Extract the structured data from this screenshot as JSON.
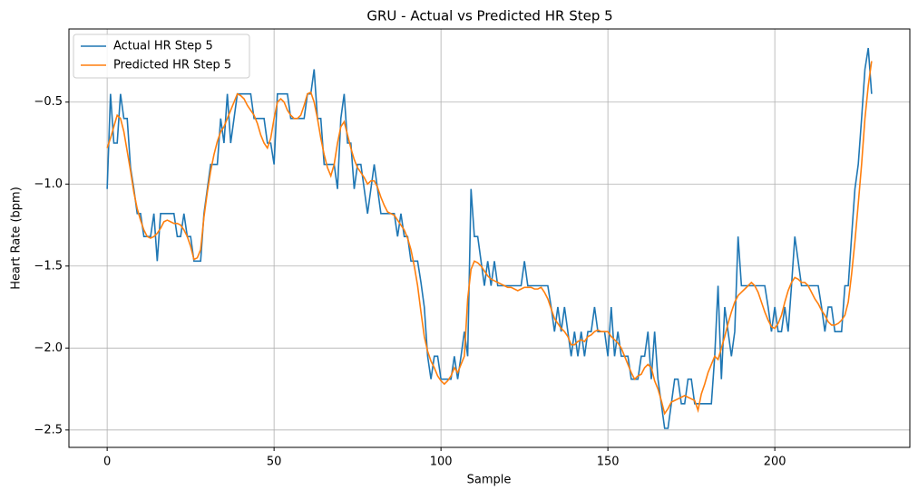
{
  "chart_data": {
    "type": "line",
    "title": "GRU - Actual vs Predicted HR Step 5",
    "x_label": "Sample",
    "y_label": "Heart Rate (bpm)",
    "xlim": [
      -11.45,
      240.45
    ],
    "xticks": [
      0,
      50,
      100,
      150,
      200
    ],
    "ylim": [
      -2.606,
      -0.054
    ],
    "yticks": [
      {
        "value": -2.5,
        "label": "−2.5"
      },
      {
        "value": -2,
        "label": "−2.0"
      },
      {
        "value": -1.5,
        "label": "−1.5"
      },
      {
        "value": -1,
        "label": "−1.0"
      },
      {
        "value": -0.5,
        "label": "−0.5"
      }
    ],
    "grid": true,
    "legend": "upper left",
    "series": [
      {
        "name": "Actual HR Step 5",
        "color": "#1f77b4",
        "values": [
          -1.03,
          -0.45,
          -0.75,
          -0.75,
          -0.45,
          -0.6,
          -0.6,
          -0.9,
          -1.03,
          -1.18,
          -1.18,
          -1.32,
          -1.32,
          -1.32,
          -1.18,
          -1.47,
          -1.18,
          -1.18,
          -1.18,
          -1.18,
          -1.18,
          -1.32,
          -1.32,
          -1.18,
          -1.32,
          -1.32,
          -1.47,
          -1.47,
          -1.47,
          -1.18,
          -1.03,
          -0.88,
          -0.88,
          -0.88,
          -0.6,
          -0.75,
          -0.45,
          -0.75,
          -0.6,
          -0.45,
          -0.45,
          -0.45,
          -0.45,
          -0.45,
          -0.6,
          -0.6,
          -0.6,
          -0.6,
          -0.75,
          -0.75,
          -0.88,
          -0.45,
          -0.45,
          -0.45,
          -0.45,
          -0.6,
          -0.6,
          -0.6,
          -0.6,
          -0.6,
          -0.45,
          -0.45,
          -0.3,
          -0.6,
          -0.6,
          -0.88,
          -0.88,
          -0.88,
          -0.88,
          -1.03,
          -0.6,
          -0.45,
          -0.75,
          -0.75,
          -1.03,
          -0.88,
          -0.88,
          -1.03,
          -1.18,
          -1.03,
          -0.88,
          -1.03,
          -1.18,
          -1.18,
          -1.18,
          -1.18,
          -1.18,
          -1.32,
          -1.18,
          -1.32,
          -1.32,
          -1.47,
          -1.47,
          -1.47,
          -1.6,
          -1.75,
          -2.05,
          -2.19,
          -2.05,
          -2.05,
          -2.19,
          -2.19,
          -2.19,
          -2.19,
          -2.05,
          -2.19,
          -2.05,
          -1.9,
          -2.05,
          -1.03,
          -1.32,
          -1.32,
          -1.47,
          -1.62,
          -1.47,
          -1.62,
          -1.47,
          -1.62,
          -1.62,
          -1.62,
          -1.62,
          -1.62,
          -1.62,
          -1.62,
          -1.62,
          -1.47,
          -1.62,
          -1.62,
          -1.62,
          -1.62,
          -1.62,
          -1.62,
          -1.62,
          -1.75,
          -1.9,
          -1.75,
          -1.9,
          -1.75,
          -1.9,
          -2.05,
          -1.9,
          -2.05,
          -1.9,
          -2.05,
          -1.9,
          -1.9,
          -1.75,
          -1.9,
          -1.9,
          -1.9,
          -2.05,
          -1.75,
          -2.05,
          -1.9,
          -2.05,
          -2.05,
          -2.05,
          -2.19,
          -2.19,
          -2.19,
          -2.05,
          -2.05,
          -1.9,
          -2.19,
          -1.9,
          -2.19,
          -2.34,
          -2.49,
          -2.49,
          -2.34,
          -2.19,
          -2.19,
          -2.34,
          -2.34,
          -2.19,
          -2.19,
          -2.34,
          -2.34,
          -2.34,
          -2.34,
          -2.34,
          -2.34,
          -2.05,
          -1.62,
          -2.19,
          -1.75,
          -1.9,
          -2.05,
          -1.9,
          -1.32,
          -1.62,
          -1.62,
          -1.62,
          -1.62,
          -1.62,
          -1.62,
          -1.62,
          -1.62,
          -1.75,
          -1.9,
          -1.75,
          -1.9,
          -1.9,
          -1.75,
          -1.9,
          -1.62,
          -1.32,
          -1.47,
          -1.62,
          -1.62,
          -1.62,
          -1.62,
          -1.62,
          -1.62,
          -1.75,
          -1.9,
          -1.75,
          -1.75,
          -1.9,
          -1.9,
          -1.9,
          -1.62,
          -1.62,
          -1.32,
          -1.03,
          -0.88,
          -0.6,
          -0.3,
          -0.17,
          -0.45
        ]
      },
      {
        "name": "Predicted HR Step 5",
        "color": "#ff7f0e",
        "values": [
          -0.78,
          -0.72,
          -0.65,
          -0.58,
          -0.6,
          -0.68,
          -0.8,
          -0.92,
          -1.05,
          -1.15,
          -1.22,
          -1.28,
          -1.32,
          -1.33,
          -1.32,
          -1.3,
          -1.27,
          -1.23,
          -1.22,
          -1.23,
          -1.24,
          -1.24,
          -1.25,
          -1.28,
          -1.32,
          -1.38,
          -1.46,
          -1.45,
          -1.4,
          -1.2,
          -1.05,
          -0.92,
          -0.82,
          -0.74,
          -0.68,
          -0.65,
          -0.6,
          -0.55,
          -0.5,
          -0.45,
          -0.46,
          -0.48,
          -0.52,
          -0.55,
          -0.58,
          -0.63,
          -0.7,
          -0.75,
          -0.78,
          -0.72,
          -0.6,
          -0.5,
          -0.48,
          -0.5,
          -0.55,
          -0.58,
          -0.6,
          -0.6,
          -0.58,
          -0.52,
          -0.45,
          -0.44,
          -0.5,
          -0.6,
          -0.72,
          -0.82,
          -0.9,
          -0.95,
          -0.88,
          -0.75,
          -0.65,
          -0.62,
          -0.7,
          -0.78,
          -0.85,
          -0.9,
          -0.93,
          -0.96,
          -1.0,
          -0.98,
          -0.98,
          -1.02,
          -1.08,
          -1.13,
          -1.17,
          -1.18,
          -1.19,
          -1.22,
          -1.25,
          -1.28,
          -1.33,
          -1.4,
          -1.5,
          -1.62,
          -1.78,
          -1.93,
          -2.02,
          -2.08,
          -2.12,
          -2.17,
          -2.2,
          -2.22,
          -2.2,
          -2.17,
          -2.12,
          -2.15,
          -2.1,
          -2.05,
          -1.7,
          -1.52,
          -1.47,
          -1.48,
          -1.5,
          -1.53,
          -1.56,
          -1.58,
          -1.59,
          -1.6,
          -1.61,
          -1.62,
          -1.63,
          -1.63,
          -1.64,
          -1.65,
          -1.64,
          -1.63,
          -1.63,
          -1.63,
          -1.64,
          -1.64,
          -1.63,
          -1.66,
          -1.7,
          -1.76,
          -1.82,
          -1.85,
          -1.88,
          -1.9,
          -1.93,
          -1.98,
          -1.98,
          -1.96,
          -1.95,
          -1.96,
          -1.93,
          -1.92,
          -1.9,
          -1.89,
          -1.9,
          -1.9,
          -1.9,
          -1.93,
          -1.95,
          -1.97,
          -2.0,
          -2.05,
          -2.1,
          -2.15,
          -2.19,
          -2.17,
          -2.16,
          -2.12,
          -2.1,
          -2.12,
          -2.2,
          -2.25,
          -2.32,
          -2.4,
          -2.37,
          -2.33,
          -2.32,
          -2.31,
          -2.3,
          -2.29,
          -2.3,
          -2.31,
          -2.32,
          -2.38,
          -2.28,
          -2.22,
          -2.15,
          -2.1,
          -2.05,
          -2.07,
          -2.0,
          -1.93,
          -1.85,
          -1.78,
          -1.72,
          -1.68,
          -1.66,
          -1.64,
          -1.62,
          -1.6,
          -1.62,
          -1.66,
          -1.72,
          -1.78,
          -1.83,
          -1.87,
          -1.88,
          -1.85,
          -1.8,
          -1.72,
          -1.65,
          -1.6,
          -1.57,
          -1.58,
          -1.6,
          -1.6,
          -1.62,
          -1.66,
          -1.7,
          -1.73,
          -1.77,
          -1.8,
          -1.84,
          -1.86,
          -1.86,
          -1.85,
          -1.83,
          -1.8,
          -1.72,
          -1.55,
          -1.35,
          -1.12,
          -0.88,
          -0.6,
          -0.4,
          -0.25
        ]
      }
    ]
  }
}
